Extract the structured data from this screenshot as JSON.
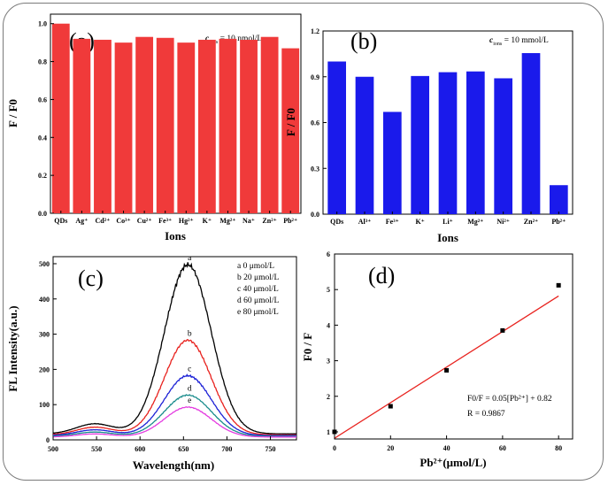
{
  "figure": {
    "background": "#ffffff",
    "frame_color": "#7a7a7a"
  },
  "chart_data": [
    {
      "panel": "(a)",
      "type": "bar",
      "annotation": "c_ions = 10 nmol/L",
      "annotation_parts": {
        "symbol": "c",
        "subscript": "ions",
        "rest": " = 10 nmol/L"
      },
      "categories": [
        "QDs",
        "Ag⁺",
        "Cd²⁺",
        "Co³⁺",
        "Cu²⁺",
        "Fe³⁺",
        "Hg²⁺",
        "K⁺",
        "Mg²⁺",
        "Na⁺",
        "Zn²⁺",
        "Pb²⁺"
      ],
      "values": [
        1.0,
        0.92,
        0.915,
        0.9,
        0.93,
        0.925,
        0.9,
        0.915,
        0.92,
        0.915,
        0.93,
        0.87
      ],
      "xlabel": "Ions",
      "ylabel": "F / F0",
      "ylim": [
        0.0,
        1.05
      ],
      "yticks": [
        "0.0",
        "0.2",
        "0.4",
        "0.6",
        "0.8",
        "1.0"
      ],
      "color": "#f03a3a"
    },
    {
      "panel": "(b)",
      "type": "bar",
      "annotation": "c_ions = 10 mmol/L",
      "annotation_parts": {
        "symbol": "c",
        "subscript": "ions",
        "rest": " = 10 mmol/L"
      },
      "categories": [
        "QDs",
        "Al³⁺",
        "Fe³⁺",
        "K⁺",
        "Li⁺",
        "Mg²⁺",
        "Ni²⁺",
        "Zn²⁺",
        "Pb²⁺"
      ],
      "values": [
        1.0,
        0.9,
        0.67,
        0.905,
        0.93,
        0.935,
        0.89,
        1.055,
        0.19
      ],
      "xlabel": "Ions",
      "ylabel": "F / F0",
      "ylim": [
        0.0,
        1.2
      ],
      "yticks": [
        "0.0",
        "0.3",
        "0.6",
        "0.9",
        "1.2"
      ],
      "color": "#1a1aeb"
    },
    {
      "panel": "(c)",
      "type": "line",
      "xlabel": "Wavelength(nm)",
      "ylabel": "FL Intensity(a.u.)",
      "xlim": [
        500,
        780
      ],
      "ylim": [
        0,
        520
      ],
      "xticks": [
        "500",
        "550",
        "600",
        "650",
        "700",
        "750"
      ],
      "yticks": [
        "0",
        "100",
        "200",
        "300",
        "400",
        "500"
      ],
      "legend": [
        "a   0 μmol/L",
        "b 20 μmol/L",
        "c 40 μmol/L",
        "d 60 μmol/L",
        "e 80 μmol/L"
      ],
      "series": [
        {
          "name": "a",
          "label": "a",
          "peak": 497,
          "base": 17,
          "shoulder": 52,
          "color": "#000000"
        },
        {
          "name": "b",
          "label": "b",
          "peak": 283,
          "base": 14,
          "shoulder": 40,
          "color": "#e8221e"
        },
        {
          "name": "c",
          "label": "c",
          "peak": 182,
          "base": 12,
          "shoulder": 30,
          "color": "#1d22d6"
        },
        {
          "name": "d",
          "label": "d",
          "peak": 127,
          "base": 10,
          "shoulder": 22,
          "color": "#1a8c8c"
        },
        {
          "name": "e",
          "label": "e",
          "peak": 93,
          "base": 8,
          "shoulder": 16,
          "color": "#e43ce0"
        }
      ],
      "peak_wavelength": 655
    },
    {
      "panel": "(d)",
      "type": "scatter",
      "xlabel": "Pb²⁺(μmol/L)",
      "ylabel": "F0 / F",
      "xlim": [
        0,
        85
      ],
      "ylim": [
        0.8,
        6
      ],
      "xticks": [
        "0",
        "20",
        "40",
        "60",
        "80"
      ],
      "yticks": [
        "1",
        "2",
        "3",
        "4",
        "5",
        "6"
      ],
      "x": [
        0,
        20,
        40,
        60,
        80
      ],
      "y": [
        1.0,
        1.72,
        2.73,
        3.85,
        5.12
      ],
      "fit": {
        "slope": 0.05,
        "intercept": 0.82,
        "color": "#e8221e"
      },
      "equation": "F0/F = 0.05[Pb²⁺] + 0.82",
      "r_value": "R = 0.9867"
    }
  ]
}
